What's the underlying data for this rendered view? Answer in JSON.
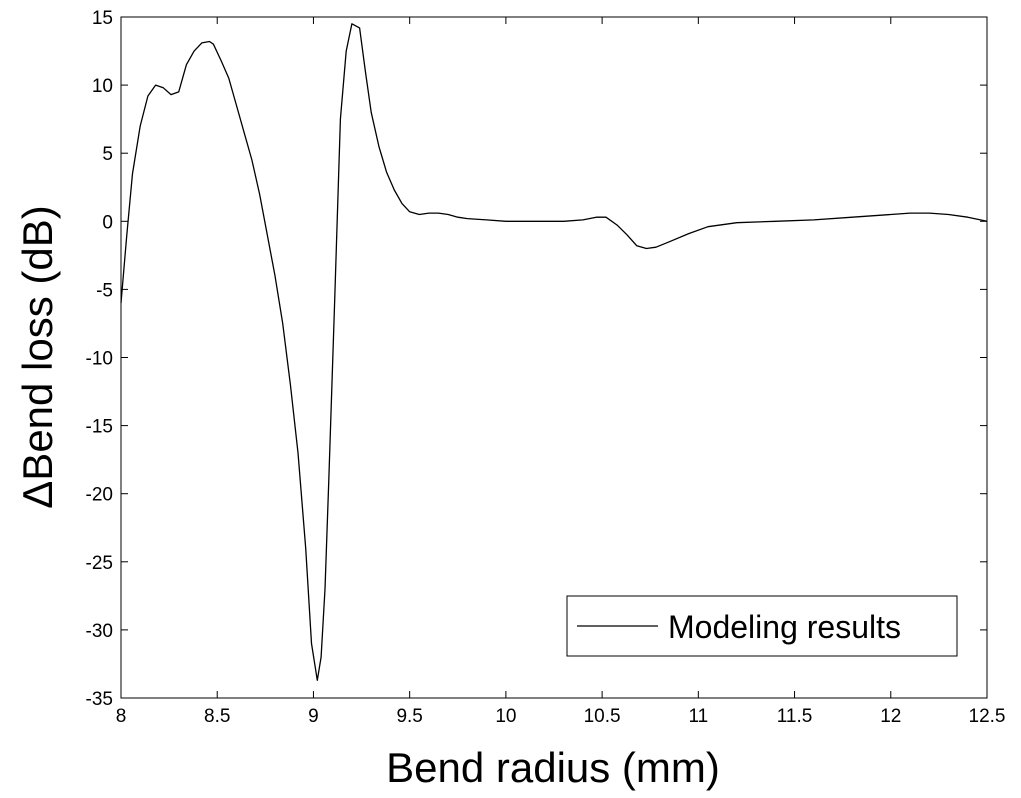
{
  "chart_data": {
    "type": "line",
    "xlabel": "Bend radius (mm)",
    "ylabel": "ΔBend loss (dB)",
    "xlim": [
      8,
      12.5
    ],
    "ylim": [
      -35,
      15
    ],
    "xticks": [
      8,
      8.5,
      9,
      9.5,
      10,
      10.5,
      11,
      11.5,
      12,
      12.5
    ],
    "xtick_labels": [
      "8",
      "8.5",
      "9",
      "9.5",
      "10",
      "10.5",
      "11",
      "11.5",
      "12",
      "12.5"
    ],
    "yticks": [
      15,
      10,
      5,
      0,
      -5,
      -10,
      -15,
      -20,
      -25,
      -30,
      -35
    ],
    "ytick_labels": [
      "15",
      "10",
      "5",
      "0",
      "-5",
      "-10",
      "-15",
      "-20",
      "-25",
      "-30",
      "-35"
    ],
    "grid": false,
    "legend_position": "bottom-right",
    "series": [
      {
        "name": "Modeling results",
        "color": "#000000",
        "x": [
          8.0,
          8.03,
          8.06,
          8.1,
          8.14,
          8.18,
          8.22,
          8.26,
          8.3,
          8.34,
          8.38,
          8.42,
          8.46,
          8.48,
          8.52,
          8.56,
          8.6,
          8.64,
          8.68,
          8.72,
          8.76,
          8.8,
          8.84,
          8.88,
          8.92,
          8.96,
          8.99,
          9.02,
          9.04,
          9.06,
          9.08,
          9.11,
          9.14,
          9.17,
          9.2,
          9.24,
          9.27,
          9.3,
          9.34,
          9.38,
          9.42,
          9.46,
          9.5,
          9.55,
          9.6,
          9.65,
          9.7,
          9.75,
          9.8,
          9.9,
          10.0,
          10.1,
          10.2,
          10.3,
          10.4,
          10.47,
          10.52,
          10.58,
          10.63,
          10.68,
          10.73,
          10.78,
          10.85,
          10.95,
          11.05,
          11.2,
          11.4,
          11.6,
          11.8,
          12.0,
          12.1,
          12.2,
          12.3,
          12.4,
          12.5
        ],
        "y": [
          -6.0,
          -1.0,
          3.5,
          7.0,
          9.2,
          10.0,
          9.8,
          9.3,
          9.5,
          11.5,
          12.5,
          13.1,
          13.2,
          13.0,
          11.8,
          10.5,
          8.5,
          6.5,
          4.5,
          2.0,
          -1.0,
          -4.0,
          -7.5,
          -12.0,
          -17.0,
          -24.0,
          -31.0,
          -33.7,
          -32.0,
          -27.0,
          -19.0,
          -6.0,
          7.5,
          12.5,
          14.5,
          14.2,
          11.0,
          8.0,
          5.5,
          3.6,
          2.3,
          1.3,
          0.7,
          0.5,
          0.6,
          0.6,
          0.5,
          0.3,
          0.2,
          0.1,
          0.0,
          0.0,
          0.0,
          0.0,
          0.1,
          0.3,
          0.3,
          -0.3,
          -1.0,
          -1.8,
          -2.0,
          -1.9,
          -1.5,
          -0.9,
          -0.4,
          -0.1,
          0.0,
          0.1,
          0.3,
          0.5,
          0.6,
          0.6,
          0.5,
          0.3,
          0.0
        ]
      }
    ]
  }
}
